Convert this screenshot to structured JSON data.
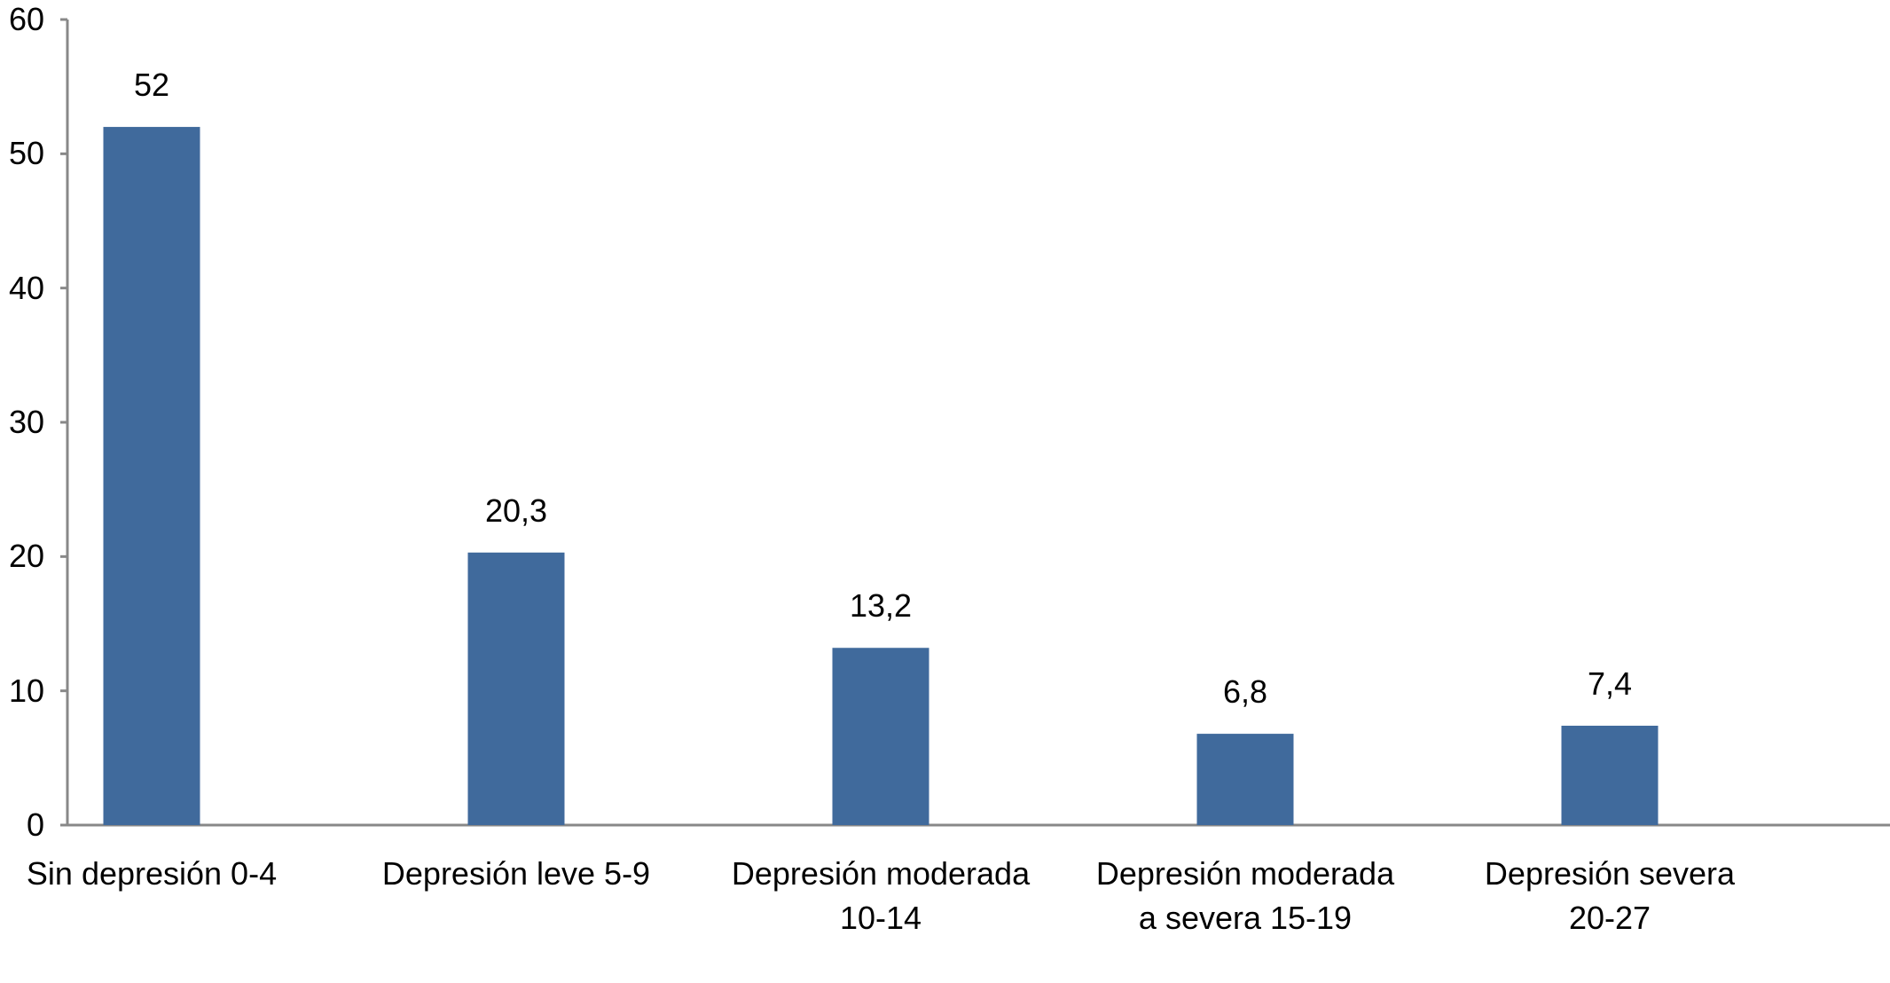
{
  "chart_data": {
    "type": "bar",
    "categories": [
      "Sin depresión 0-4",
      "Depresión leve 5-9",
      "Depresión moderada 10-14",
      "Depresión moderada a severa 15-19",
      "Depresión severa 20-27"
    ],
    "values": [
      52,
      20.3,
      13.2,
      6.8,
      7.4
    ],
    "value_labels": [
      "52",
      "20,3",
      "13,2",
      "6,8",
      "7,4"
    ],
    "color": "#406a9c",
    "ylim": [
      0,
      60
    ],
    "yticks": [
      0,
      10,
      20,
      30,
      40,
      50,
      60
    ],
    "grid": false
  }
}
